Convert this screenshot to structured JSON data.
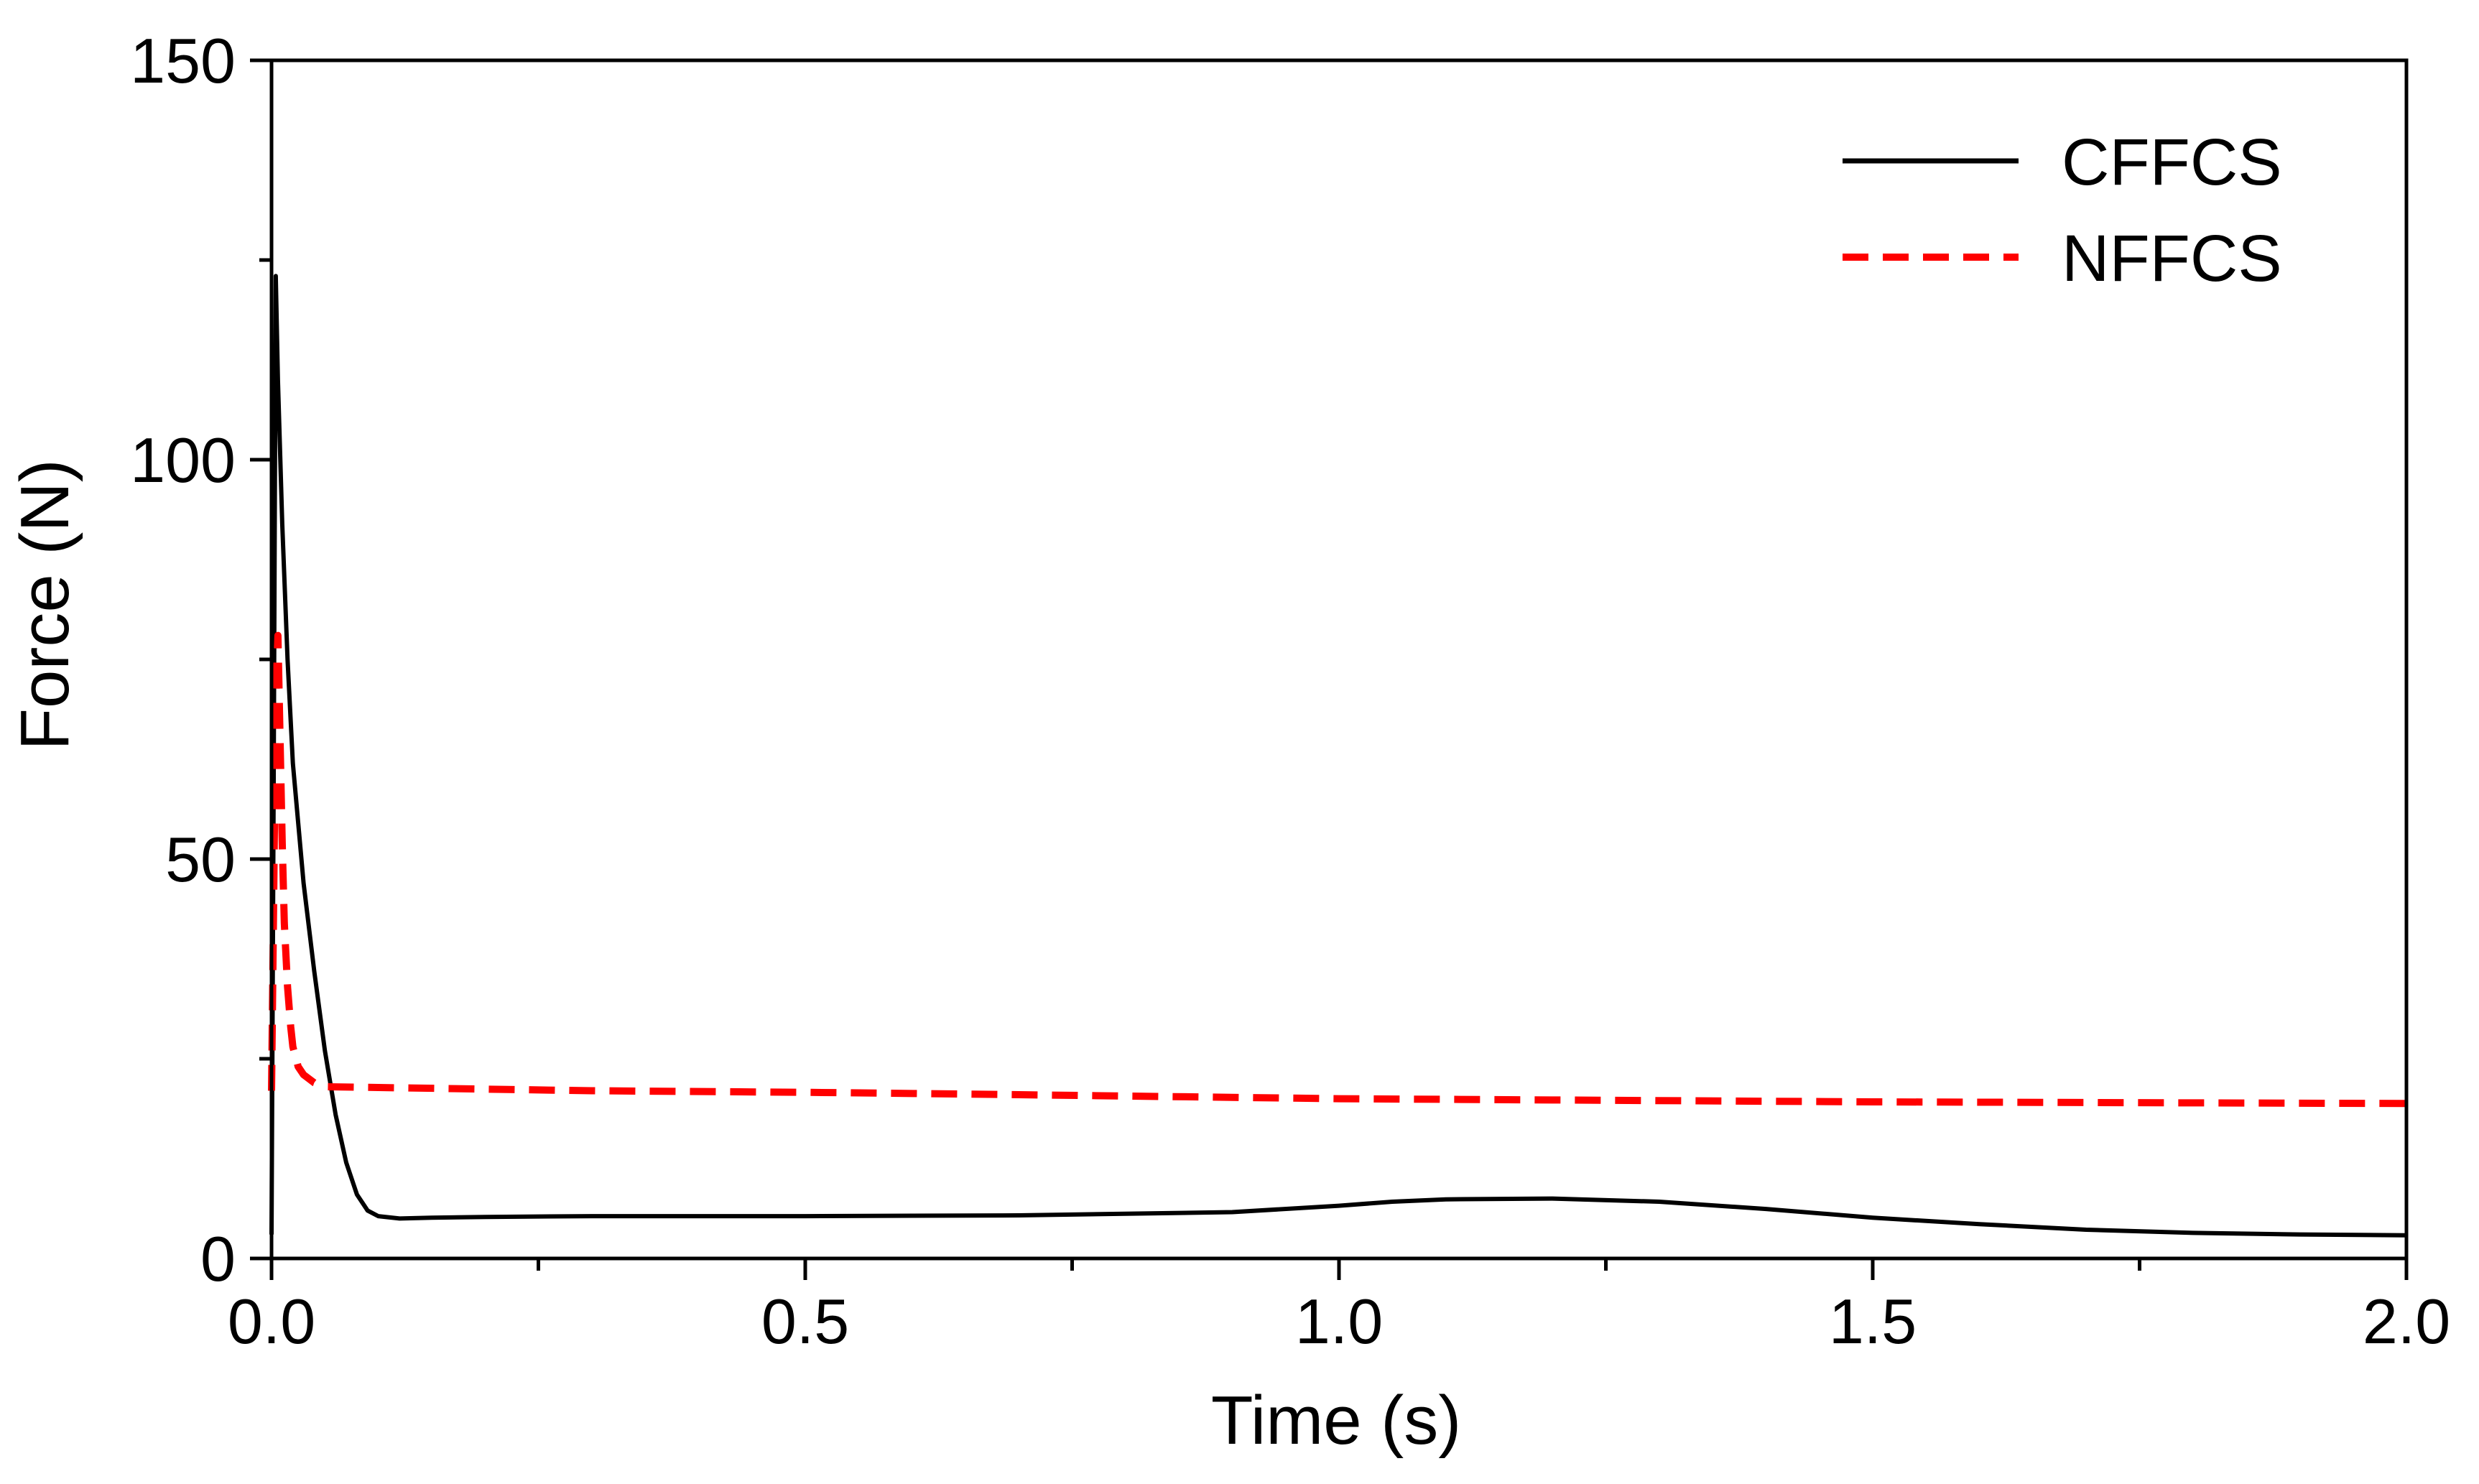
{
  "chart_data": {
    "type": "line",
    "title": "",
    "xlabel": "Time (s)",
    "ylabel": "Force (N)",
    "xlim": [
      0,
      2.0
    ],
    "ylim": [
      0,
      150
    ],
    "x_ticks": [
      "0.0",
      "0.5",
      "1.0",
      "1.5",
      "2.0"
    ],
    "x_tick_values": [
      0,
      0.5,
      1.0,
      1.5,
      2.0
    ],
    "x_minor_tick_values": [
      0.25,
      0.75,
      1.25,
      1.75
    ],
    "y_ticks": [
      "0",
      "50",
      "100",
      "150"
    ],
    "y_tick_values": [
      0,
      50,
      100,
      150
    ],
    "y_minor_tick_values": [
      25,
      75,
      125
    ],
    "grid": false,
    "legend_position": "top-right",
    "series": [
      {
        "name": "CFFCS",
        "color": "#000000",
        "style": "solid",
        "x": [
          0,
          0.002,
          0.004,
          0.006,
          0.01,
          0.015,
          0.02,
          0.03,
          0.04,
          0.05,
          0.06,
          0.07,
          0.08,
          0.09,
          0.1,
          0.12,
          0.15,
          0.2,
          0.3,
          0.5,
          0.7,
          0.9,
          1.0,
          1.05,
          1.1,
          1.2,
          1.3,
          1.4,
          1.5,
          1.6,
          1.7,
          1.8,
          1.9,
          2.0
        ],
        "y": [
          3,
          60,
          123,
          110,
          92,
          75,
          62,
          47,
          36,
          26,
          18,
          12,
          8,
          6,
          5.3,
          5.0,
          5.1,
          5.2,
          5.3,
          5.3,
          5.4,
          5.8,
          6.6,
          7.1,
          7.4,
          7.5,
          7.1,
          6.2,
          5.1,
          4.3,
          3.6,
          3.2,
          3.0,
          2.9
        ]
      },
      {
        "name": "NFFCS",
        "color": "#ff0000",
        "style": "dashed",
        "x": [
          0,
          0.002,
          0.004,
          0.006,
          0.008,
          0.01,
          0.012,
          0.015,
          0.018,
          0.02,
          0.025,
          0.03,
          0.04,
          0.05,
          0.1,
          0.3,
          0.5,
          0.7,
          1.0,
          1.5,
          2.0
        ],
        "y": [
          21,
          45,
          70,
          78,
          65,
          52,
          42,
          34,
          29,
          26.5,
          24,
          23,
          22,
          21.5,
          21.4,
          21.0,
          20.8,
          20.5,
          20.0,
          19.6,
          19.4
        ]
      }
    ]
  }
}
